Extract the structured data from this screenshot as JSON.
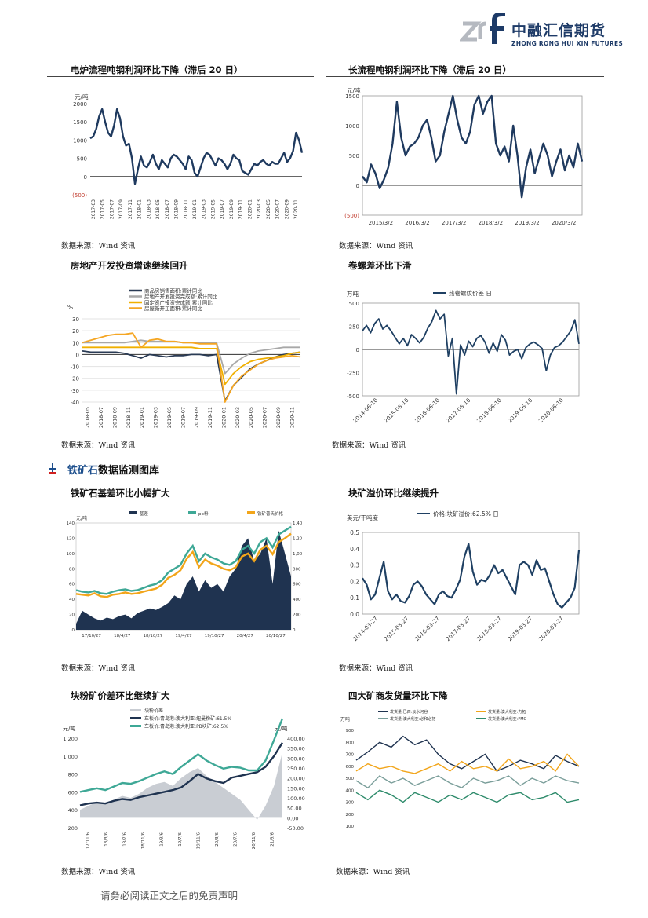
{
  "header": {
    "logo_cn": "中融汇信期货",
    "logo_en": "ZHONG RONG HUI XIN FUTURES",
    "logo_mark": "zrf"
  },
  "titles": {
    "c1": "电炉流程吨钢利润环比下降（滞后 20 日）",
    "c2": "长流程吨钢利润环比下降（滞后 20 日）",
    "c3": "房地产开发投资增速继续回升",
    "c4": "卷螺差环比下滑",
    "c5": "铁矿石基差环比小幅扩大",
    "c6": "块矿溢价环比继续提升",
    "c7": "块粉矿价差环比继续扩大",
    "c8": "四大矿商发货量环比下降"
  },
  "source": "数据来源：Wind 资讯",
  "section": {
    "title_a": "铁矿石",
    "title_b": "数据监测图库"
  },
  "footer": "请务必阅读正文之后的免责声明",
  "colors": {
    "navy": "#1f3a5f",
    "gold": "#f2a51a",
    "gray": "#b0b0b0",
    "teal": "#3ea896",
    "green": "#2e8b6b"
  },
  "chart_data": [
    {
      "id": "c1",
      "type": "line",
      "unit": "元/吨",
      "ylim": [
        -500,
        2000
      ],
      "yticks": [
        "2000",
        "1500",
        "1000",
        "500",
        "0",
        "(500)"
      ],
      "xticks": [
        "2017-03",
        "2017-05",
        "2017-07",
        "2017-09",
        "2017-11",
        "2018-01",
        "2018-03",
        "2018-05",
        "2018-07",
        "2018-09",
        "2018-11",
        "2019-01",
        "2019-03",
        "2019-05",
        "2019-07",
        "2019-09",
        "2019-11",
        "2020-01",
        "2020-03",
        "2020-05",
        "2020-07",
        "2020-09",
        "2020-11"
      ],
      "series": [
        {
          "values": [
            1050,
            1100,
            1300,
            1650,
            1850,
            1500,
            1200,
            1100,
            1400,
            1850,
            1600,
            1100,
            850,
            900,
            500,
            -200,
            200,
            550,
            300,
            250,
            400,
            600,
            350,
            200,
            450,
            350,
            250,
            500,
            600,
            550,
            450,
            350,
            200,
            550,
            450,
            100,
            0,
            250,
            500,
            650,
            600,
            450,
            300,
            500,
            450,
            350,
            200,
            350,
            600,
            500,
            450,
            150,
            100,
            50,
            200,
            350,
            300,
            400,
            450,
            350,
            300,
            400,
            350,
            350,
            500,
            650,
            400,
            500,
            700,
            1200,
            1000,
            650
          ]
        }
      ]
    },
    {
      "id": "c2",
      "type": "line",
      "unit": "元/吨",
      "ylim": [
        -500,
        1500
      ],
      "yticks": [
        "1500",
        "1000",
        "500",
        "0",
        "(500)"
      ],
      "xticks": [
        "2015/3/2",
        "2016/3/2",
        "2017/3/2",
        "2018/3/2",
        "2019/3/2",
        "2020/3/2"
      ],
      "series": [
        {
          "values": [
            150,
            50,
            350,
            200,
            -50,
            100,
            300,
            700,
            1400,
            800,
            500,
            650,
            700,
            800,
            1000,
            1100,
            800,
            400,
            500,
            900,
            1200,
            1500,
            1100,
            800,
            700,
            900,
            1350,
            1500,
            1200,
            1400,
            1600,
            700,
            500,
            650,
            400,
            1000,
            500,
            -200,
            300,
            600,
            200,
            450,
            700,
            500,
            150,
            400,
            600,
            250,
            500,
            300,
            700,
            400
          ]
        }
      ]
    },
    {
      "id": "c3",
      "type": "line",
      "unit": "%",
      "ylim": [
        -40,
        30
      ],
      "yticks": [
        "30",
        "20",
        "10",
        "0",
        "-10",
        "-20",
        "-30",
        "-40"
      ],
      "xticks": [
        "2018-05",
        "2018-07",
        "2018-09",
        "2018-11",
        "2019-01",
        "2019-03",
        "2019-05",
        "2019-07",
        "2019-09",
        "2019-11",
        "2020-01",
        "2020-03",
        "2020-05",
        "2020-07",
        "2020-09",
        "2020-11"
      ],
      "series": [
        {
          "name": "商品房销售面积:累计同比",
          "values": [
            3,
            2,
            2,
            2,
            2,
            1,
            -1,
            -3,
            0,
            -1,
            -2,
            -1,
            -1,
            0,
            0,
            -1,
            0,
            -39,
            -26,
            -19,
            -12,
            -8,
            -5,
            -2,
            0,
            1,
            2
          ]
        },
        {
          "name": "房地产开发投资完成额:累计同比",
          "values": [
            10,
            10,
            10,
            10,
            10,
            10,
            11,
            12,
            11,
            11,
            11,
            11,
            10,
            10,
            10,
            10,
            10,
            -16,
            -8,
            -3,
            1,
            3,
            4,
            5,
            6,
            6,
            6
          ]
        },
        {
          "name": "固定资产投资完成额:累计同比",
          "values": [
            6,
            6,
            6,
            6,
            6,
            6,
            6,
            6,
            6,
            6,
            6,
            6,
            6,
            6,
            5,
            5,
            5,
            -25,
            -16,
            -10,
            -6,
            -4,
            -3,
            -2,
            -1,
            1,
            2
          ]
        },
        {
          "name": "房屋新开工面积:累计同比",
          "values": [
            10,
            12,
            14,
            16,
            17,
            17,
            18,
            6,
            12,
            13,
            11,
            11,
            10,
            10,
            9,
            9,
            9,
            -44,
            -26,
            -18,
            -13,
            -8,
            -5,
            -3,
            -2,
            -1,
            -2
          ]
        }
      ]
    },
    {
      "id": "c4",
      "type": "line",
      "unit": "万吨",
      "ylim": [
        -500,
        500
      ],
      "yticks": [
        "500",
        "250",
        "0",
        "-250",
        "-500"
      ],
      "xticks": [
        "2014-06-10",
        "2015-06-10",
        "2016-06-10",
        "2017-06-10",
        "2018-06-10",
        "2019-06-10",
        "2020-06-10"
      ],
      "legend": "热卷螺纹价差 日",
      "series": [
        {
          "name": "热卷螺纹价差 日",
          "values": [
            200,
            260,
            180,
            280,
            330,
            220,
            260,
            200,
            130,
            60,
            120,
            40,
            160,
            120,
            70,
            130,
            230,
            300,
            420,
            330,
            380,
            -70,
            120,
            -480,
            50,
            -60,
            90,
            30,
            120,
            150,
            80,
            -40,
            70,
            -20,
            160,
            100,
            -60,
            -20,
            0,
            -100,
            20,
            60,
            80,
            50,
            10,
            -230,
            -60,
            20,
            40,
            80,
            140,
            200,
            320,
            60
          ]
        }
      ]
    },
    {
      "id": "c5",
      "type": "area",
      "unit": "元/吨",
      "legend": [
        "基差",
        "pb粉",
        "铁矿普氏价格"
      ],
      "xticks": [
        "17/10/27",
        "18/4/27",
        "18/10/27",
        "19/4/27",
        "19/10/27",
        "20/4/27",
        "20/10/27"
      ],
      "yticks_left": [
        "140",
        "120",
        "100",
        "80",
        "60",
        "40",
        "20",
        "0"
      ],
      "yticks_right": [
        "1,400",
        "1,200",
        "1,000",
        "800",
        "600",
        "400",
        "200",
        "0"
      ],
      "series": [
        {
          "name": "基差",
          "values": [
            8,
            25,
            20,
            15,
            12,
            16,
            14,
            18,
            20,
            15,
            22,
            25,
            28,
            26,
            30,
            35,
            45,
            40,
            60,
            70,
            50,
            65,
            55,
            60,
            50,
            70,
            80,
            110,
            120,
            90,
            100,
            120,
            60,
            130,
            100,
            70
          ]
        },
        {
          "name": "pb粉",
          "values": [
            520,
            500,
            490,
            510,
            480,
            470,
            500,
            520,
            530,
            510,
            520,
            550,
            580,
            600,
            650,
            750,
            800,
            850,
            1000,
            1100,
            900,
            1000,
            950,
            920,
            870,
            850,
            900,
            1050,
            1100,
            1000,
            1150,
            1200,
            1080,
            1250,
            1300,
            1350
          ]
        },
        {
          "name": "铁矿普氏价格",
          "values": [
            470,
            460,
            450,
            480,
            440,
            430,
            460,
            470,
            490,
            470,
            480,
            500,
            520,
            540,
            590,
            680,
            720,
            780,
            930,
            1020,
            820,
            920,
            870,
            840,
            800,
            780,
            820,
            960,
            1000,
            900,
            1050,
            1100,
            990,
            1150,
            1200,
            1260
          ]
        }
      ]
    },
    {
      "id": "c6",
      "type": "line",
      "unit": "美元/干吨度",
      "ylim": [
        0,
        0.5
      ],
      "yticks": [
        "0.5",
        "0.4",
        "0.3",
        "0.2",
        "0.1",
        "0.0"
      ],
      "xticks": [
        "2014-03-27",
        "2015-03-27",
        "2016-03-27",
        "2017-03-27",
        "2018-03-27",
        "2019-03-27",
        "2020-03-27"
      ],
      "legend": "价格:块矿溢价:62.5% 日",
      "series": [
        {
          "name": "价格:块矿溢价:62.5% 日",
          "values": [
            0.22,
            0.18,
            0.09,
            0.12,
            0.22,
            0.32,
            0.14,
            0.09,
            0.12,
            0.08,
            0.07,
            0.11,
            0.18,
            0.2,
            0.17,
            0.12,
            0.09,
            0.06,
            0.12,
            0.14,
            0.11,
            0.1,
            0.15,
            0.21,
            0.35,
            0.43,
            0.26,
            0.18,
            0.21,
            0.2,
            0.24,
            0.3,
            0.25,
            0.27,
            0.22,
            0.17,
            0.12,
            0.3,
            0.32,
            0.3,
            0.24,
            0.33,
            0.27,
            0.28,
            0.2,
            0.12,
            0.06,
            0.04,
            0.07,
            0.1,
            0.16,
            0.39
          ]
        }
      ]
    },
    {
      "id": "c7",
      "type": "area",
      "unit": "元/吨",
      "legend": [
        "块粉价差",
        "车板价:青岛港:澳大利亚:纽曼粉矿:61.5%",
        "车板价:青岛港:澳大利亚:PB块矿:62.5%"
      ],
      "yticks_left": [
        "1,200",
        "1,000",
        "800",
        "600",
        "400",
        "200"
      ],
      "yticks_right": [
        "400.00",
        "350.00",
        "300.00",
        "250.00",
        "200.00",
        "150.00",
        "100.00",
        "50.00",
        "0.00",
        "-50.00"
      ],
      "xticks": [
        "17/11/6",
        "18/3/6",
        "18/7/6",
        "18/11/6",
        "19/3/6",
        "19/7/6",
        "19/11/6",
        "20/3/6",
        "20/7/6",
        "20/11/6",
        "21/3/6"
      ],
      "series": [
        {
          "name": "块粉价差",
          "values": [
            40,
            60,
            80,
            70,
            90,
            110,
            100,
            120,
            150,
            170,
            180,
            160,
            200,
            230,
            250,
            210,
            180,
            150,
            120,
            90,
            40,
            -10,
            60,
            160,
            330
          ]
        },
        {
          "name": "车板价:青岛港:澳大利亚:纽曼粉矿:61.5%",
          "values": [
            450,
            470,
            480,
            470,
            500,
            520,
            510,
            540,
            560,
            580,
            600,
            620,
            650,
            720,
            800,
            750,
            720,
            700,
            760,
            780,
            800,
            820,
            880,
            1000,
            1150
          ]
        },
        {
          "name": "车板价:青岛港:澳大利亚:PB块矿:62.5%",
          "values": [
            600,
            620,
            640,
            620,
            660,
            700,
            690,
            720,
            760,
            800,
            830,
            800,
            880,
            950,
            1020,
            950,
            900,
            860,
            880,
            870,
            840,
            840,
            950,
            1180,
            1420
          ]
        }
      ]
    },
    {
      "id": "c8",
      "type": "line",
      "unit": "万吨",
      "yticks": [
        "900",
        "800",
        "700",
        "600",
        "500",
        "400",
        "300",
        "200",
        "100"
      ],
      "legend": [
        "发货量:巴西:淡水河谷",
        "发货量:澳大利亚:力拓",
        "发货量:澳大利亚:必和必拓",
        "发货量:澳大利亚:FMG"
      ],
      "series": [
        {
          "name": "发货量:巴西:淡水河谷",
          "values": [
            650,
            720,
            800,
            760,
            850,
            780,
            820,
            700,
            620,
            580,
            640,
            700,
            560,
            600,
            650,
            620,
            580,
            690,
            640,
            600
          ]
        },
        {
          "name": "发货量:澳大利亚:力拓",
          "values": [
            560,
            620,
            580,
            600,
            560,
            540,
            580,
            620,
            560,
            640,
            580,
            600,
            560,
            660,
            580,
            600,
            640,
            560,
            700,
            600
          ]
        },
        {
          "name": "发货量:澳大利亚:必和必拓",
          "values": [
            480,
            420,
            520,
            460,
            500,
            440,
            480,
            520,
            460,
            420,
            500,
            460,
            480,
            520,
            440,
            500,
            460,
            520,
            480,
            460
          ]
        },
        {
          "name": "发货量:澳大利亚:FMG",
          "values": [
            380,
            320,
            400,
            360,
            300,
            380,
            340,
            300,
            360,
            320,
            380,
            340,
            300,
            360,
            380,
            320,
            340,
            380,
            300,
            320
          ]
        }
      ]
    }
  ]
}
